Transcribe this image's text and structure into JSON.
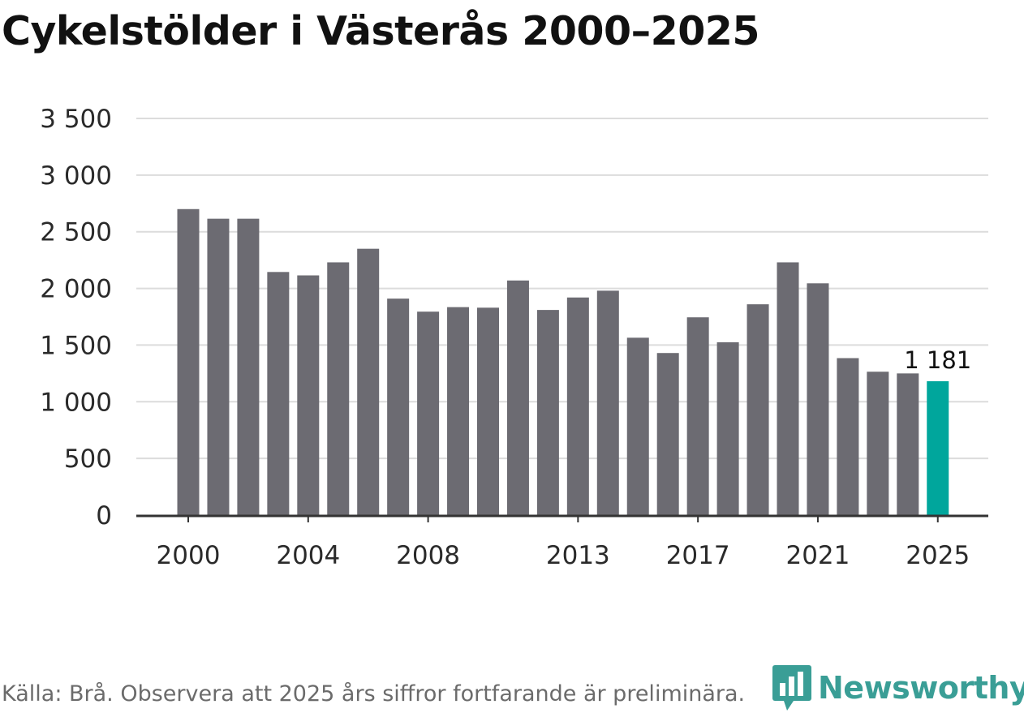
{
  "title": "Cykelstölder i Västerås 2000–2025",
  "source": "Källa: Brå. Observera att 2025 års siffror fortfarande är preliminära.",
  "brand": {
    "name": "Newsworthy",
    "icon": "newsworthy-chart-logo-icon",
    "color": "#3a9e96"
  },
  "colors": {
    "bar": "#6c6b72",
    "highlight": "#00a69c",
    "grid": "#dcdcdc",
    "axis": "#333333",
    "text": "#2a2a2a"
  },
  "chart_data": {
    "type": "bar",
    "title": "Cykelstölder i Västerås 2000–2025",
    "xlabel": "",
    "ylabel": "",
    "ylim": [
      0,
      3500
    ],
    "yticks": [
      0,
      500,
      1000,
      1500,
      2000,
      2500,
      3000,
      3500
    ],
    "ytick_labels": [
      "0",
      "500",
      "1 000",
      "1 500",
      "2 000",
      "2 500",
      "3 000",
      "3 500"
    ],
    "xtick_labels": [
      "2000",
      "2004",
      "2008",
      "2013",
      "2017",
      "2021",
      "2025"
    ],
    "categories": [
      "2000",
      "2001",
      "2002",
      "2003",
      "2004",
      "2005",
      "2006",
      "2007",
      "2008",
      "2009",
      "2010",
      "2011",
      "2012",
      "2013",
      "2014",
      "2015",
      "2016",
      "2017",
      "2018",
      "2019",
      "2020",
      "2021",
      "2022",
      "2023",
      "2024",
      "2025"
    ],
    "values": [
      2700,
      2615,
      2615,
      2145,
      2115,
      2230,
      2350,
      1910,
      1795,
      1835,
      1830,
      2070,
      1810,
      1920,
      1980,
      1565,
      1430,
      1745,
      1525,
      1860,
      2230,
      2045,
      1385,
      1265,
      1250,
      1181
    ],
    "highlight_index": 25,
    "annotation": {
      "index": 25,
      "text": "1 181"
    },
    "grid": true,
    "legend": "none"
  }
}
